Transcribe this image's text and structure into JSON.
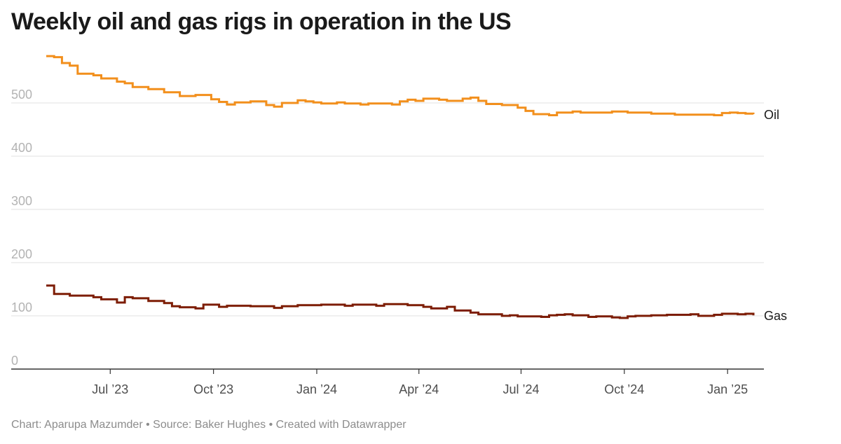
{
  "title": "Weekly oil and gas rigs in operation in the US",
  "footer": {
    "chart_label": "Chart:",
    "chart_author": "Aparupa Mazumder",
    "source_label": "Source:",
    "source": "Baker Hughes",
    "created_with": "Created with Datawrapper",
    "separator": "•"
  },
  "colors": {
    "oil": "#f28f1c",
    "gas": "#7d1d05",
    "grid": "#e0e0e0",
    "axis": "#333333"
  },
  "chart_data": {
    "type": "line",
    "interpolation": "step",
    "title": "Weekly oil and gas rigs in operation in the US",
    "xlabel": "",
    "ylabel": "",
    "x_range": [
      "2023-05-05",
      "2025-01-24"
    ],
    "ylim": [
      0,
      600
    ],
    "y_ticks": [
      0,
      100,
      200,
      300,
      400,
      500
    ],
    "y_tick_labels": [
      "0",
      "100",
      "200",
      "300",
      "400",
      "500"
    ],
    "x_ticks": [
      "2023-07-01",
      "2023-10-01",
      "2024-01-01",
      "2024-04-01",
      "2024-07-01",
      "2024-10-01",
      "2025-01-01"
    ],
    "x_tick_labels": [
      "Jul ’23",
      "Oct ’23",
      "Jan ’24",
      "Apr ’24",
      "Jul ’24",
      "Oct ’24",
      "Jan ’25"
    ],
    "grid": true,
    "series": [
      {
        "name": "Oil",
        "label": "Oil",
        "points": [
          [
            "2023-05-05",
            588
          ],
          [
            "2023-05-12",
            586
          ],
          [
            "2023-05-19",
            575
          ],
          [
            "2023-05-26",
            570
          ],
          [
            "2023-06-02",
            555
          ],
          [
            "2023-06-16",
            552
          ],
          [
            "2023-06-23",
            546
          ],
          [
            "2023-07-07",
            540
          ],
          [
            "2023-07-14",
            537
          ],
          [
            "2023-07-21",
            530
          ],
          [
            "2023-08-04",
            526
          ],
          [
            "2023-08-18",
            520
          ],
          [
            "2023-09-01",
            513
          ],
          [
            "2023-09-15",
            515
          ],
          [
            "2023-09-29",
            507
          ],
          [
            "2023-10-06",
            502
          ],
          [
            "2023-10-13",
            497
          ],
          [
            "2023-10-20",
            501
          ],
          [
            "2023-11-03",
            503
          ],
          [
            "2023-11-17",
            496
          ],
          [
            "2023-11-24",
            493
          ],
          [
            "2023-12-01",
            500
          ],
          [
            "2023-12-15",
            505
          ],
          [
            "2023-12-22",
            503
          ],
          [
            "2023-12-29",
            501
          ],
          [
            "2024-01-05",
            499
          ],
          [
            "2024-01-19",
            501
          ],
          [
            "2024-01-26",
            499
          ],
          [
            "2024-02-09",
            497
          ],
          [
            "2024-02-16",
            499
          ],
          [
            "2024-03-08",
            497
          ],
          [
            "2024-03-15",
            503
          ],
          [
            "2024-03-22",
            506
          ],
          [
            "2024-03-29",
            504
          ],
          [
            "2024-04-05",
            508
          ],
          [
            "2024-04-19",
            506
          ],
          [
            "2024-04-26",
            504
          ],
          [
            "2024-05-10",
            508
          ],
          [
            "2024-05-17",
            510
          ],
          [
            "2024-05-24",
            504
          ],
          [
            "2024-05-31",
            498
          ],
          [
            "2024-06-14",
            496
          ],
          [
            "2024-06-28",
            491
          ],
          [
            "2024-07-05",
            485
          ],
          [
            "2024-07-12",
            479
          ],
          [
            "2024-07-26",
            477
          ],
          [
            "2024-08-02",
            482
          ],
          [
            "2024-08-16",
            484
          ],
          [
            "2024-08-23",
            482
          ],
          [
            "2024-09-20",
            484
          ],
          [
            "2024-10-04",
            482
          ],
          [
            "2024-10-25",
            480
          ],
          [
            "2024-11-15",
            478
          ],
          [
            "2024-12-20",
            477
          ],
          [
            "2024-12-27",
            481
          ],
          [
            "2025-01-03",
            482
          ],
          [
            "2025-01-10",
            481
          ],
          [
            "2025-01-17",
            480
          ],
          [
            "2025-01-24",
            479
          ]
        ]
      },
      {
        "name": "Gas",
        "label": "Gas",
        "points": [
          [
            "2023-05-05",
            157
          ],
          [
            "2023-05-12",
            141
          ],
          [
            "2023-05-26",
            138
          ],
          [
            "2023-06-16",
            135
          ],
          [
            "2023-06-23",
            131
          ],
          [
            "2023-07-07",
            125
          ],
          [
            "2023-07-14",
            135
          ],
          [
            "2023-07-21",
            133
          ],
          [
            "2023-08-04",
            128
          ],
          [
            "2023-08-18",
            124
          ],
          [
            "2023-08-25",
            118
          ],
          [
            "2023-09-01",
            116
          ],
          [
            "2023-09-15",
            114
          ],
          [
            "2023-09-22",
            121
          ],
          [
            "2023-10-06",
            117
          ],
          [
            "2023-10-13",
            119
          ],
          [
            "2023-11-03",
            118
          ],
          [
            "2023-11-24",
            115
          ],
          [
            "2023-12-01",
            118
          ],
          [
            "2023-12-15",
            120
          ],
          [
            "2024-01-05",
            121
          ],
          [
            "2024-01-26",
            119
          ],
          [
            "2024-02-02",
            121
          ],
          [
            "2024-02-23",
            119
          ],
          [
            "2024-03-01",
            122
          ],
          [
            "2024-03-22",
            120
          ],
          [
            "2024-04-05",
            117
          ],
          [
            "2024-04-12",
            114
          ],
          [
            "2024-04-26",
            117
          ],
          [
            "2024-05-03",
            110
          ],
          [
            "2024-05-17",
            106
          ],
          [
            "2024-05-24",
            103
          ],
          [
            "2024-06-14",
            100
          ],
          [
            "2024-06-21",
            101
          ],
          [
            "2024-06-28",
            99
          ],
          [
            "2024-07-19",
            98
          ],
          [
            "2024-07-26",
            101
          ],
          [
            "2024-08-02",
            102
          ],
          [
            "2024-08-09",
            103
          ],
          [
            "2024-08-16",
            101
          ],
          [
            "2024-08-30",
            98
          ],
          [
            "2024-09-06",
            99
          ],
          [
            "2024-09-20",
            97
          ],
          [
            "2024-09-27",
            96
          ],
          [
            "2024-10-04",
            99
          ],
          [
            "2024-10-11",
            100
          ],
          [
            "2024-10-25",
            101
          ],
          [
            "2024-11-08",
            102
          ],
          [
            "2024-11-29",
            103
          ],
          [
            "2024-12-06",
            100
          ],
          [
            "2024-12-20",
            102
          ],
          [
            "2024-12-27",
            104
          ],
          [
            "2025-01-10",
            103
          ],
          [
            "2025-01-17",
            104
          ],
          [
            "2025-01-24",
            101
          ]
        ]
      }
    ]
  }
}
